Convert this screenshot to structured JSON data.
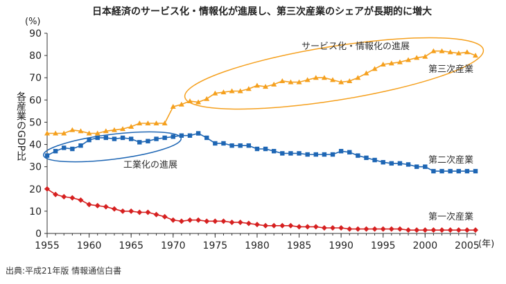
{
  "chart_data": {
    "type": "line",
    "title": "日本経済のサービス化・情報化が進展し、第三次産業のシェアが長期的に増大",
    "ylabel": "各産業のGDP比",
    "yunit": "(%)",
    "xunit": "(年)",
    "ylim": [
      0,
      90
    ],
    "xlim": [
      1955,
      2006
    ],
    "yticks": [
      0,
      10,
      20,
      30,
      40,
      50,
      60,
      70,
      80,
      90
    ],
    "xticks": [
      1955,
      1960,
      1965,
      1970,
      1975,
      1980,
      1985,
      1990,
      1995,
      2000,
      2005
    ],
    "grid": false,
    "series": [
      {
        "name": "第三次産業",
        "color": "#f5a01e",
        "marker": "triangle",
        "x": [
          1955,
          1956,
          1957,
          1958,
          1959,
          1960,
          1961,
          1962,
          1963,
          1964,
          1965,
          1966,
          1967,
          1968,
          1969,
          1970,
          1971,
          1972,
          1973,
          1974,
          1975,
          1976,
          1977,
          1978,
          1979,
          1980,
          1981,
          1982,
          1983,
          1984,
          1985,
          1986,
          1987,
          1988,
          1989,
          1990,
          1991,
          1992,
          1993,
          1994,
          1995,
          1996,
          1997,
          1998,
          1999,
          2000,
          2001,
          2002,
          2003,
          2004,
          2005,
          2006
        ],
        "values": [
          45,
          45,
          45,
          46.5,
          46,
          45,
          45,
          46,
          46.5,
          47,
          48,
          49.5,
          49.5,
          49.5,
          49.5,
          57,
          58,
          59.5,
          59,
          60.5,
          63,
          63.5,
          64,
          64,
          65,
          66.5,
          66,
          67,
          68.5,
          68,
          68,
          69,
          70,
          70,
          69,
          68,
          68.5,
          70,
          72,
          74,
          76,
          76.5,
          77,
          78,
          79,
          79.5,
          82,
          82,
          81.5,
          81,
          81.5,
          80
        ]
      },
      {
        "name": "第二次産業",
        "color": "#1e66b4",
        "marker": "square",
        "x": [
          1955,
          1956,
          1957,
          1958,
          1959,
          1960,
          1961,
          1962,
          1963,
          1964,
          1965,
          1966,
          1967,
          1968,
          1969,
          1970,
          1971,
          1972,
          1973,
          1974,
          1975,
          1976,
          1977,
          1978,
          1979,
          1980,
          1981,
          1982,
          1983,
          1984,
          1985,
          1986,
          1987,
          1988,
          1989,
          1990,
          1991,
          1992,
          1993,
          1994,
          1995,
          1996,
          1997,
          1998,
          1999,
          2000,
          2001,
          2002,
          2003,
          2004,
          2005,
          2006
        ],
        "values": [
          35,
          37,
          38.5,
          38,
          39.5,
          42,
          43,
          43,
          42.5,
          43,
          42.5,
          41,
          41.5,
          42.5,
          43,
          43.5,
          44,
          44,
          45,
          43,
          40.5,
          40.5,
          39.5,
          39.5,
          39.5,
          38,
          38,
          37,
          36,
          36,
          36,
          35.5,
          35.5,
          35.5,
          35.5,
          37,
          36.5,
          35,
          34,
          33,
          32,
          31.5,
          31.5,
          31,
          30,
          30,
          28,
          28,
          28,
          28,
          28,
          28
        ]
      },
      {
        "name": "第一次産業",
        "color": "#d62020",
        "marker": "diamond",
        "x": [
          1955,
          1956,
          1957,
          1958,
          1959,
          1960,
          1961,
          1962,
          1963,
          1964,
          1965,
          1966,
          1967,
          1968,
          1969,
          1970,
          1971,
          1972,
          1973,
          1974,
          1975,
          1976,
          1977,
          1978,
          1979,
          1980,
          1981,
          1982,
          1983,
          1984,
          1985,
          1986,
          1987,
          1988,
          1989,
          1990,
          1991,
          1992,
          1993,
          1994,
          1995,
          1996,
          1997,
          1998,
          1999,
          2000,
          2001,
          2002,
          2003,
          2004,
          2005,
          2006
        ],
        "values": [
          20,
          17.5,
          16.5,
          16,
          15,
          13,
          12.5,
          12,
          11,
          10,
          10,
          9.5,
          9.5,
          8.5,
          7.5,
          6,
          5.5,
          6,
          6,
          5.5,
          5.5,
          5.5,
          5,
          5,
          4.5,
          4,
          3.5,
          3.5,
          3.5,
          3.5,
          3,
          3,
          3,
          2.5,
          2.5,
          2.5,
          2,
          2,
          2,
          2,
          2,
          2,
          2,
          1.5,
          1.5,
          1.5,
          1.5,
          1.5,
          1.5,
          1.5,
          1.5,
          1.5
        ]
      }
    ],
    "annotations": [
      {
        "text": "サービス化・情報化の進展",
        "color": "#f5a01e"
      },
      {
        "text": "工業化の進展",
        "color": "#1e66b4"
      }
    ]
  },
  "source": "出典:平成21年版 情報通信白書"
}
